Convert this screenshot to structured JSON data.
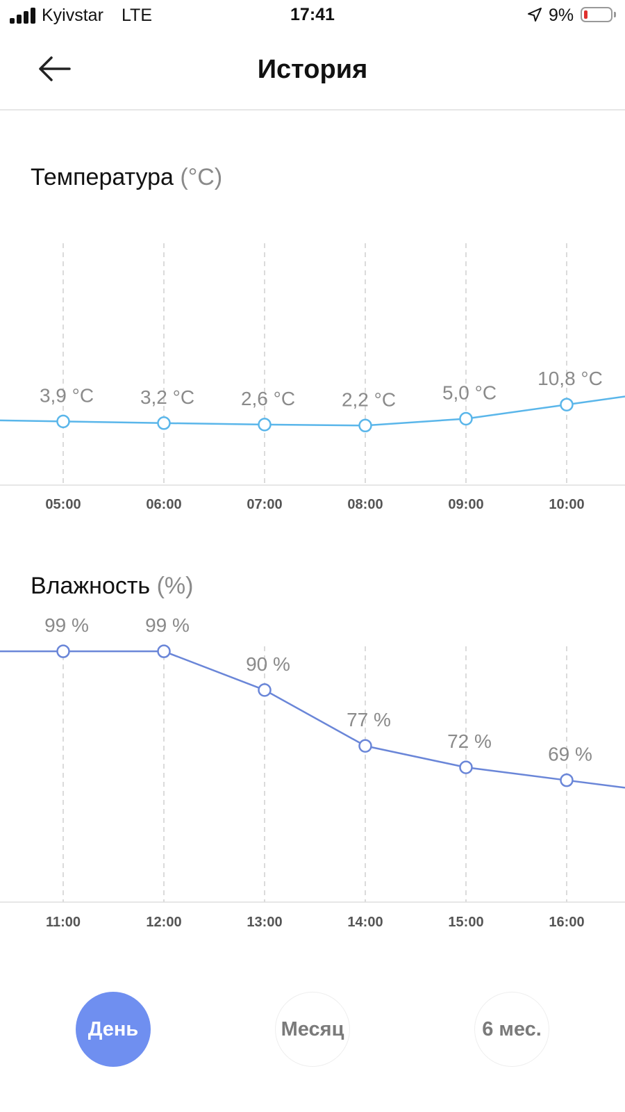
{
  "status_bar": {
    "carrier": "Kyivstar",
    "network": "LTE",
    "time": "17:41",
    "battery_percent": "9%",
    "battery_level": 0.09,
    "signal_bars": 4
  },
  "header": {
    "title": "История",
    "back_icon": "arrow-left-icon"
  },
  "temperature_section": {
    "title": "Температура",
    "unit": "(°C)"
  },
  "humidity_section": {
    "title": "Влажность",
    "unit": "(%)"
  },
  "colors": {
    "temperature_line": "#5ab6ea",
    "humidity_line": "#6a86d8",
    "active_button": "#6f8ff0"
  },
  "chart_data": [
    {
      "type": "line",
      "title": "Температура (°C)",
      "categories": [
        "05:00",
        "06:00",
        "07:00",
        "08:00",
        "09:00",
        "10:00"
      ],
      "values": [
        3.9,
        3.2,
        2.6,
        2.2,
        5.0,
        10.8
      ],
      "point_labels": [
        "3,9 °C",
        "3,2 °C",
        "2,6 °C",
        "2,2 °C",
        "5,0 °C",
        "10,8 °C"
      ],
      "ylim": [
        -40,
        80
      ],
      "grid": true
    },
    {
      "type": "line",
      "title": "Влажность (%)",
      "categories": [
        "11:00",
        "12:00",
        "13:00",
        "14:00",
        "15:00",
        "16:00"
      ],
      "values": [
        99,
        99,
        90,
        77,
        72,
        69
      ],
      "point_labels": [
        "99 %",
        "99 %",
        "90 %",
        "77 %",
        "72 %",
        "69 %"
      ],
      "ylim": [
        40,
        100
      ],
      "grid": true
    }
  ],
  "period_buttons": [
    "День",
    "Месяц",
    "6 мес."
  ],
  "active_period": "День"
}
